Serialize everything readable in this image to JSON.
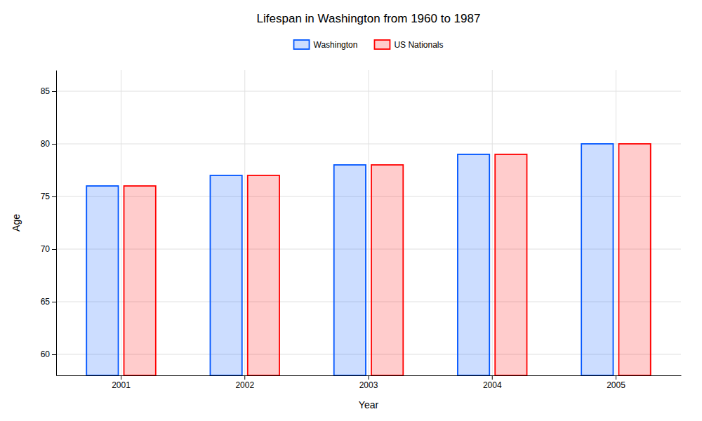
{
  "chart_data": {
    "type": "bar",
    "title": "Lifespan in Washington from 1960 to 1987",
    "xlabel": "Year",
    "ylabel": "Age",
    "categories": [
      "2001",
      "2002",
      "2003",
      "2004",
      "2005"
    ],
    "series": [
      {
        "name": "Washington",
        "color": "#0055ff",
        "values": [
          76,
          77,
          78,
          79,
          80
        ]
      },
      {
        "name": "US Nationals",
        "color": "#ff0000",
        "values": [
          76,
          77,
          78,
          79,
          80
        ]
      }
    ],
    "ylim": [
      58,
      87
    ],
    "yticks": [
      60,
      65,
      70,
      75,
      80,
      85
    ],
    "grid": true,
    "legend": "top"
  }
}
